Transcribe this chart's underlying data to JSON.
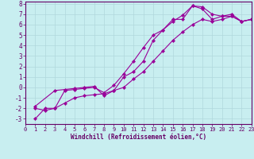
{
  "xlabel": "Windchill (Refroidissement éolien,°C)",
  "bg_color": "#c8eef0",
  "grid_color": "#b0d8dc",
  "line_color": "#990099",
  "xlim": [
    0,
    23
  ],
  "ylim": [
    -3.5,
    8.2
  ],
  "xticks": [
    0,
    1,
    2,
    3,
    4,
    5,
    6,
    7,
    8,
    9,
    10,
    11,
    12,
    13,
    14,
    15,
    16,
    17,
    18,
    19,
    20,
    21,
    22,
    23
  ],
  "yticks": [
    -3,
    -2,
    -1,
    0,
    1,
    2,
    3,
    4,
    5,
    6,
    7,
    8
  ],
  "line1_x": [
    1,
    2,
    3,
    4,
    5,
    6,
    7,
    8,
    9,
    10,
    11,
    12,
    13,
    14,
    15,
    16,
    17,
    18,
    19,
    20,
    21,
    22,
    23
  ],
  "line1_y": [
    -2.0,
    -2.2,
    -2.0,
    -0.3,
    -0.2,
    -0.1,
    0.0,
    -0.5,
    0.2,
    1.3,
    2.5,
    3.8,
    5.0,
    5.5,
    6.3,
    6.9,
    7.8,
    7.7,
    7.0,
    6.8,
    7.0,
    6.3,
    6.5
  ],
  "line2_x": [
    1,
    3,
    4,
    5,
    6,
    7,
    8,
    9,
    10,
    11,
    12,
    13,
    14,
    15,
    16,
    17,
    18,
    19,
    20,
    21,
    22,
    23
  ],
  "line2_y": [
    -1.8,
    -0.3,
    -0.2,
    -0.1,
    0.0,
    0.1,
    -0.8,
    -0.3,
    1.0,
    1.5,
    2.5,
    4.5,
    5.5,
    6.5,
    6.5,
    7.8,
    7.5,
    6.5,
    6.8,
    6.8,
    6.3,
    6.5
  ],
  "line3_x": [
    1,
    2,
    3,
    4,
    5,
    6,
    7,
    8,
    9,
    10,
    11,
    12,
    13,
    14,
    15,
    16,
    17,
    18,
    19,
    20,
    21,
    22,
    23
  ],
  "line3_y": [
    -3.0,
    -2.0,
    -2.0,
    -1.5,
    -1.0,
    -0.8,
    -0.7,
    -0.6,
    -0.3,
    0.0,
    0.8,
    1.5,
    2.5,
    3.5,
    4.5,
    5.3,
    6.0,
    6.5,
    6.3,
    6.5,
    6.8,
    6.3,
    6.5
  ],
  "tick_fontsize": 5.0,
  "xlabel_fontsize": 5.5
}
